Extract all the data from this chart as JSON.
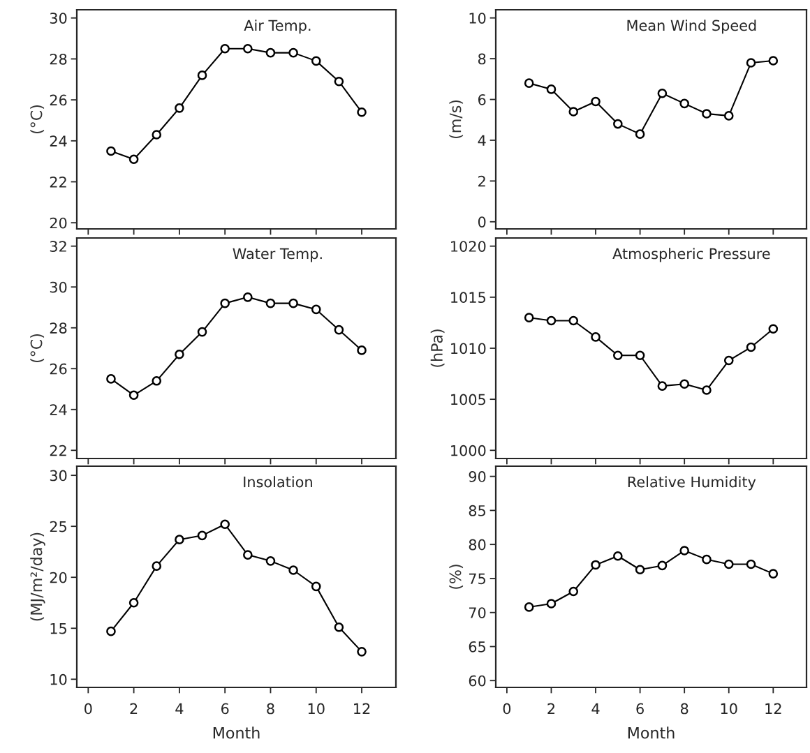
{
  "chart_data": [
    {
      "type": "line",
      "title": "Air Temp.",
      "ylabel": "(°C)",
      "x": [
        1,
        2,
        3,
        4,
        5,
        6,
        7,
        8,
        9,
        10,
        11,
        12
      ],
      "values": [
        23.5,
        23.1,
        24.3,
        25.6,
        27.2,
        28.5,
        28.5,
        28.3,
        28.3,
        27.9,
        26.9,
        25.4
      ],
      "color": "#000000",
      "marker": "circle",
      "xlim": [
        -0.5,
        13.5
      ],
      "xticks": [
        0,
        2,
        4,
        6,
        8,
        10,
        12
      ],
      "ylim": [
        19.7,
        30.4
      ],
      "yticks": [
        20,
        22,
        24,
        26,
        28,
        30
      ],
      "tick_labels": "y"
    },
    {
      "type": "line",
      "title": "Mean Wind Speed",
      "ylabel": "(m/s)",
      "x": [
        1,
        2,
        3,
        4,
        5,
        6,
        7,
        8,
        9,
        10,
        11,
        12
      ],
      "values": [
        6.8,
        6.5,
        5.4,
        5.9,
        4.8,
        4.3,
        6.3,
        5.8,
        5.3,
        5.2,
        7.8,
        7.9
      ],
      "color": "#000000",
      "marker": "circle",
      "xlim": [
        -0.5,
        13.5
      ],
      "xticks": [
        0,
        2,
        4,
        6,
        8,
        10,
        12
      ],
      "ylim": [
        -0.35,
        10.4
      ],
      "yticks": [
        0,
        2,
        4,
        6,
        8,
        10
      ],
      "tick_labels": "y"
    },
    {
      "type": "line",
      "title": "Water Temp.",
      "ylabel": "(°C)",
      "x": [
        1,
        2,
        3,
        4,
        5,
        6,
        7,
        8,
        9,
        10,
        11,
        12
      ],
      "values": [
        25.5,
        24.7,
        25.4,
        26.7,
        27.8,
        29.2,
        29.5,
        29.2,
        29.2,
        28.9,
        27.9,
        26.9
      ],
      "color": "#000000",
      "marker": "circle",
      "xlim": [
        -0.5,
        13.5
      ],
      "xticks": [
        0,
        2,
        4,
        6,
        8,
        10,
        12
      ],
      "ylim": [
        21.6,
        32.4
      ],
      "yticks": [
        22,
        24,
        26,
        28,
        30,
        32
      ],
      "tick_labels": "y"
    },
    {
      "type": "line",
      "title": "Atmospheric Pressure",
      "ylabel": "(hPa)",
      "x": [
        1,
        2,
        3,
        4,
        5,
        6,
        7,
        8,
        9,
        10,
        11,
        12
      ],
      "values": [
        1013.0,
        1012.7,
        1012.7,
        1011.1,
        1009.3,
        1009.3,
        1006.3,
        1006.5,
        1005.9,
        1008.8,
        1010.1,
        1011.9
      ],
      "color": "#000000",
      "marker": "circle",
      "xlim": [
        -0.5,
        13.5
      ],
      "xticks": [
        0,
        2,
        4,
        6,
        8,
        10,
        12
      ],
      "ylim": [
        999.2,
        1020.8
      ],
      "yticks": [
        1000,
        1005,
        1010,
        1015,
        1020
      ],
      "tick_labels": "y"
    },
    {
      "type": "line",
      "title": "Insolation",
      "ylabel": "(MJ/m²/day)",
      "xlabel": "Month",
      "x": [
        1,
        2,
        3,
        4,
        5,
        6,
        7,
        8,
        9,
        10,
        11,
        12
      ],
      "values": [
        14.7,
        17.5,
        21.1,
        23.7,
        24.1,
        25.2,
        22.2,
        21.6,
        20.7,
        19.1,
        15.1,
        12.7
      ],
      "color": "#000000",
      "marker": "circle",
      "xlim": [
        -0.5,
        13.5
      ],
      "xticks": [
        0,
        2,
        4,
        6,
        8,
        10,
        12
      ],
      "ylim": [
        9.2,
        30.9
      ],
      "yticks": [
        10,
        15,
        20,
        25,
        30
      ]
    },
    {
      "type": "line",
      "title": "Relative Humidity",
      "ylabel": "(%)",
      "xlabel": "Month",
      "x": [
        1,
        2,
        3,
        4,
        5,
        6,
        7,
        8,
        9,
        10,
        11,
        12
      ],
      "values": [
        70.8,
        71.3,
        73.1,
        77.0,
        78.3,
        76.3,
        76.9,
        79.1,
        77.8,
        77.1,
        77.1,
        75.7
      ],
      "color": "#000000",
      "marker": "circle",
      "xlim": [
        -0.5,
        13.5
      ],
      "xticks": [
        0,
        2,
        4,
        6,
        8,
        10,
        12
      ],
      "ylim": [
        59,
        91.5
      ],
      "yticks": [
        60,
        65,
        70,
        75,
        80,
        85,
        90
      ]
    }
  ]
}
